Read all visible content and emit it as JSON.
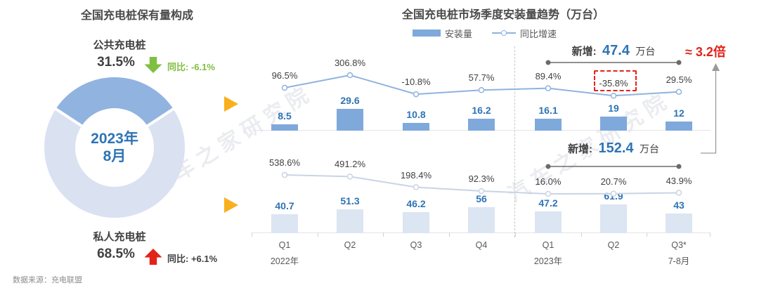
{
  "watermark": {
    "text": "汽车之家研究院"
  },
  "colors": {
    "bar_blue": "#7FA9DA",
    "bar_light_blue": "#DCE5F2",
    "line_blue": "#8FB3DF",
    "line_light": "#C9D4E4",
    "value_blue": "#2E74B5",
    "text_dark": "#404040",
    "text_gray": "#595959",
    "green": "#7FBF41",
    "red": "#E2231A",
    "gold": "#F8B11D",
    "donut_public": "#91B3E0",
    "donut_private": "#DAE1F1"
  },
  "left_panel": {
    "title": "全国充电桩保有量构成",
    "donut": {
      "public_share_pct": 31.5,
      "private_share_pct": 68.5,
      "center_line1": "2023年",
      "center_line2": "8月"
    },
    "public": {
      "name": "公共充电桩",
      "share": "31.5%",
      "yoy": "同比: -6.1%",
      "trend": "down"
    },
    "private": {
      "name": "私人充电桩",
      "share": "68.5%",
      "yoy": "同比: +6.1%",
      "trend": "up"
    },
    "source": "数据来源：充电联盟"
  },
  "right_panel": {
    "title": "全国充电桩市场季度安装量趋势（万台）",
    "legend": {
      "bar_label": "安装量",
      "line_label": "同比增速"
    },
    "ratio_label": "≈ 3.2倍",
    "x_axis": {
      "categories": [
        "Q1",
        "Q2",
        "Q3",
        "Q4",
        "Q1",
        "Q2",
        "Q3*"
      ],
      "sub_labels": [
        {
          "index": 0,
          "text": "2022年"
        },
        {
          "index": 4,
          "text": "2023年"
        },
        {
          "index": 6,
          "text": "7-8月"
        }
      ]
    }
  },
  "chart_data": [
    {
      "type": "bar",
      "position": "top",
      "title": "",
      "categories": [
        "Q1",
        "Q2",
        "Q3",
        "Q4",
        "Q1",
        "Q2",
        "Q3*"
      ],
      "series": [
        {
          "name": "安装量",
          "type": "bar",
          "unit": "万台",
          "values": [
            8.5,
            29.6,
            10.8,
            16.2,
            16.1,
            19,
            12
          ]
        },
        {
          "name": "同比增速",
          "type": "line",
          "unit": "%",
          "values": [
            96.5,
            306.8,
            -10.8,
            57.7,
            89.4,
            -35.8,
            29.5
          ]
        }
      ],
      "annotation": {
        "prefix": "新增:",
        "value": "47.4",
        "unit": "万台",
        "from_index": 4,
        "to_index": 6
      },
      "highlight_pct_index": 5,
      "colors": {
        "bar": "#7FA9DA",
        "line": "#8FB3DF",
        "value_label": "#2E74B5"
      }
    },
    {
      "type": "bar",
      "position": "bottom",
      "title": "",
      "categories": [
        "Q1",
        "Q2",
        "Q3",
        "Q4",
        "Q1",
        "Q2",
        "Q3*"
      ],
      "series": [
        {
          "name": "安装量",
          "type": "bar",
          "unit": "万台",
          "values": [
            40.7,
            51.3,
            46.2,
            56,
            47.2,
            61.9,
            43
          ]
        },
        {
          "name": "同比增速",
          "type": "line",
          "unit": "%",
          "values": [
            538.6,
            491.2,
            198.4,
            92.3,
            16.0,
            20.7,
            43.9
          ]
        }
      ],
      "annotation": {
        "prefix": "新增:",
        "value": "152.4",
        "unit": "万台",
        "from_index": 4,
        "to_index": 6
      },
      "highlight_pct_index": null,
      "colors": {
        "bar": "#DCE5F2",
        "line": "#C9D4E4",
        "value_label": "#2E74B5"
      }
    }
  ]
}
